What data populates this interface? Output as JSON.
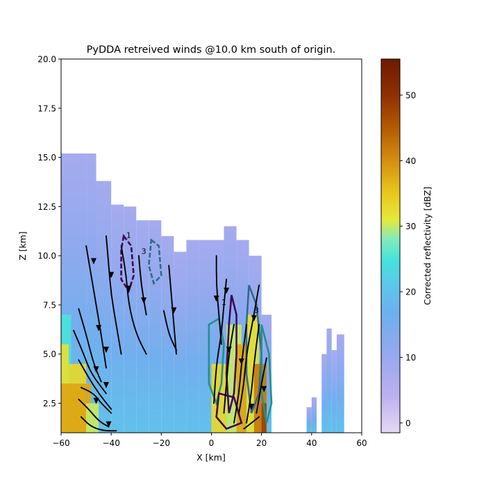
{
  "chart_data": {
    "type": "heatmap",
    "title": "PyDDA retreived winds @10.0 km south of origin.",
    "xlabel": "X [km]",
    "ylabel": "Z [km]",
    "xlim": [
      -60,
      60
    ],
    "ylim": [
      1,
      20
    ],
    "x_ticks": [
      -60,
      -40,
      -20,
      0,
      20,
      40,
      60
    ],
    "x_tick_labels": [
      "−60",
      "−40",
      "−20",
      "0",
      "20",
      "40",
      "60"
    ],
    "y_ticks": [
      2.5,
      5.0,
      7.5,
      10.0,
      12.5,
      15.0,
      17.5,
      20.0
    ],
    "y_tick_labels": [
      "2.5",
      "5.0",
      "7.5",
      "10.0",
      "12.5",
      "15.0",
      "17.5",
      "20.0"
    ],
    "colorbar": {
      "label": "Corrected reflectivity [dBZ]",
      "range": [
        -1.5,
        55.5
      ],
      "ticks": [
        0,
        10,
        20,
        30,
        40,
        50
      ],
      "tick_labels": [
        "0",
        "10",
        "20",
        "30",
        "40",
        "50"
      ]
    },
    "reflectivity_columns": [
      {
        "x0": -60,
        "x1": -50,
        "top": 15.2
      },
      {
        "x0": -50,
        "x1": -46,
        "top": 15.2
      },
      {
        "x0": -46,
        "x1": -40,
        "top": 13.8
      },
      {
        "x0": -40,
        "x1": -35,
        "top": 12.6
      },
      {
        "x0": -35,
        "x1": -30,
        "top": 12.5
      },
      {
        "x0": -30,
        "x1": -25,
        "top": 11.8
      },
      {
        "x0": -25,
        "x1": -20,
        "top": 11.8
      },
      {
        "x0": -20,
        "x1": -15,
        "top": 11.0
      },
      {
        "x0": -15,
        "x1": -10,
        "top": 10.2
      },
      {
        "x0": -10,
        "x1": -5,
        "top": 10.8
      },
      {
        "x0": -5,
        "x1": 0,
        "top": 10.8
      },
      {
        "x0": 0,
        "x1": 5,
        "top": 10.8
      },
      {
        "x0": 5,
        "x1": 10,
        "top": 11.5
      },
      {
        "x0": 10,
        "x1": 15,
        "top": 10.8
      },
      {
        "x0": 15,
        "x1": 20,
        "top": 10.0
      },
      {
        "x0": 20,
        "x1": 24,
        "top": 7.0
      },
      {
        "x0": 38,
        "x1": 40,
        "top": 2.3
      },
      {
        "x0": 40,
        "x1": 42,
        "top": 2.8
      },
      {
        "x0": 44,
        "x1": 46,
        "top": 5.0
      },
      {
        "x0": 46,
        "x1": 48,
        "top": 6.3
      },
      {
        "x0": 48,
        "x1": 50,
        "top": 5.2
      },
      {
        "x0": 50,
        "x1": 53,
        "top": 6.0
      }
    ],
    "reflectivity_cores": [
      {
        "x0": -60,
        "x1": -56,
        "z0": 1,
        "z1": 7.0,
        "dbz": 25
      },
      {
        "x0": -60,
        "x1": -57,
        "z0": 1,
        "z1": 5.5,
        "dbz": 32
      },
      {
        "x0": -57,
        "x1": -50,
        "z0": 1,
        "z1": 4.5,
        "dbz": 33
      },
      {
        "x0": -60,
        "x1": -48,
        "z0": 1,
        "z1": 3.5,
        "dbz": 38
      },
      {
        "x0": -50,
        "x1": -45,
        "z0": 1,
        "z1": 2.5,
        "dbz": 30
      },
      {
        "x0": 0,
        "x1": 6,
        "z0": 1,
        "z1": 4.5,
        "dbz": 33
      },
      {
        "x0": 6,
        "x1": 12,
        "z0": 1,
        "z1": 6.5,
        "dbz": 30
      },
      {
        "x0": 10,
        "x1": 14,
        "z0": 1,
        "z1": 5.5,
        "dbz": 38
      },
      {
        "x0": 14,
        "x1": 19,
        "z0": 1,
        "z1": 7.0,
        "dbz": 32
      },
      {
        "x0": 17,
        "x1": 22,
        "z0": 1,
        "z1": 4.5,
        "dbz": 42
      },
      {
        "x0": 20,
        "x1": 22,
        "z0": 1,
        "z1": 2.5,
        "dbz": 48
      }
    ],
    "contour_levels": {
      "labeled": [
        "1",
        "3"
      ],
      "colors": [
        "#440154",
        "#31688e",
        "#21918c"
      ]
    },
    "streamlines": [
      [
        [
          -50,
          10.5
        ],
        [
          -48,
          9.0
        ],
        [
          -46,
          7.5
        ],
        [
          -44,
          6.0
        ],
        [
          -42,
          4.3
        ]
      ],
      [
        [
          -42,
          11.0
        ],
        [
          -41,
          9.5
        ],
        [
          -40,
          8.0
        ],
        [
          -38,
          6.5
        ],
        [
          -36,
          5.0
        ]
      ],
      [
        [
          -36,
          10.5
        ],
        [
          -34,
          9.0
        ],
        [
          -33,
          7.5
        ],
        [
          -30,
          6.0
        ],
        [
          -26,
          5.0
        ]
      ],
      [
        [
          -29,
          10.0
        ],
        [
          -28,
          8.5
        ],
        [
          -26,
          7.0
        ]
      ],
      [
        [
          -17,
          9.5
        ],
        [
          -16,
          8.0
        ],
        [
          -15,
          6.5
        ],
        [
          -14,
          5.0
        ]
      ],
      [
        [
          -19,
          7.2
        ],
        [
          -17,
          6.0
        ],
        [
          -14,
          5.2
        ]
      ],
      [
        [
          -53,
          7.3
        ],
        [
          -50,
          6.0
        ],
        [
          -47,
          4.5
        ],
        [
          -44,
          3.6
        ]
      ],
      [
        [
          -55,
          6.2
        ],
        [
          -51,
          5.0
        ],
        [
          -48,
          4.0
        ],
        [
          -42,
          3.0
        ]
      ],
      [
        [
          -53,
          4.7
        ],
        [
          -49,
          3.8
        ],
        [
          -45,
          3.0
        ],
        [
          -40,
          2.2
        ]
      ],
      [
        [
          -52,
          3.3
        ],
        [
          -47,
          3.0
        ],
        [
          -44,
          2.5
        ],
        [
          -40,
          2.0
        ]
      ],
      [
        [
          -53,
          2.7
        ],
        [
          -49,
          2.2
        ],
        [
          -45,
          1.6
        ],
        [
          -41,
          1.3
        ]
      ],
      [
        [
          -52,
          1.8
        ],
        [
          -48,
          1.3
        ],
        [
          -43,
          1.1
        ],
        [
          -38,
          1.1
        ]
      ],
      [
        [
          2,
          10.0
        ],
        [
          2,
          8.5
        ],
        [
          3,
          7.0
        ],
        [
          4,
          5.5
        ]
      ],
      [
        [
          6,
          8.8
        ],
        [
          5,
          7.5
        ],
        [
          4,
          6.0
        ],
        [
          2,
          4.5
        ],
        [
          1,
          2.5
        ]
      ],
      [
        [
          5,
          2.0
        ],
        [
          6,
          3.5
        ],
        [
          7,
          5.0
        ],
        [
          9,
          6.5
        ]
      ],
      [
        [
          9,
          1.5
        ],
        [
          11,
          3.0
        ],
        [
          12,
          4.5
        ],
        [
          14,
          6.5
        ]
      ],
      [
        [
          11,
          2.0
        ],
        [
          13,
          3.5
        ],
        [
          14,
          5.0
        ],
        [
          17,
          7.0
        ],
        [
          19,
          8.5
        ]
      ],
      [
        [
          14,
          1.5
        ],
        [
          16,
          3.0
        ],
        [
          17,
          4.5
        ],
        [
          19,
          6.5
        ]
      ],
      [
        [
          18,
          2.0
        ],
        [
          20,
          3.5
        ],
        [
          22,
          4.8
        ]
      ],
      [
        [
          13,
          1.2
        ],
        [
          16,
          1.5
        ],
        [
          19,
          1.8
        ]
      ]
    ],
    "streamline_arrows": [
      [
        -47,
        9.7
      ],
      [
        -40,
        9.0
      ],
      [
        -33,
        8.3
      ],
      [
        -27,
        7.7
      ],
      [
        -15,
        7.2
      ],
      [
        -45,
        6.3
      ],
      [
        -42,
        5.2
      ],
      [
        -46,
        4.2
      ],
      [
        -42,
        3.4
      ],
      [
        -46,
        2.6
      ],
      [
        -41,
        1.4
      ],
      [
        2,
        7.8
      ],
      [
        6,
        8.2
      ],
      [
        7,
        5.2
      ],
      [
        12,
        4.6
      ],
      [
        17,
        6.8
      ],
      [
        16,
        2.3
      ],
      [
        21,
        3.2
      ]
    ]
  }
}
